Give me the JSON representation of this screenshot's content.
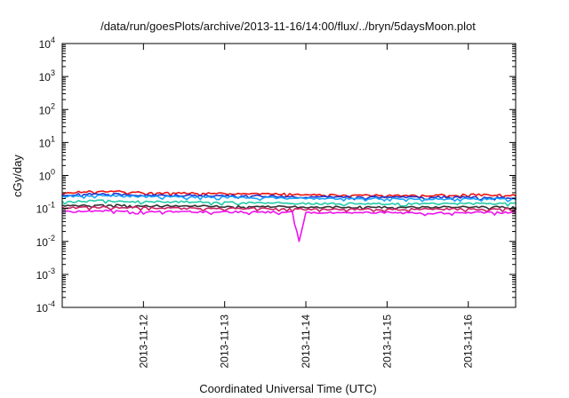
{
  "chart_data": {
    "type": "line",
    "title": "/data/run/goesPlots/archive/2013-11-16/14:00/flux/../bryn/5daysMoon.plot",
    "xlabel": "Coordinated Universal Time (UTC)",
    "ylabel": "cGy/day",
    "yscale": "log",
    "ylim": [
      0.0001,
      10000
    ],
    "xlim": [
      "2013-11-11T00:00",
      "2013-11-16T14:00"
    ],
    "yticks": [
      {
        "base": "10",
        "exp": "-4",
        "value": 0.0001
      },
      {
        "base": "10",
        "exp": "-3",
        "value": 0.001
      },
      {
        "base": "10",
        "exp": "-2",
        "value": 0.01
      },
      {
        "base": "10",
        "exp": "-1",
        "value": 0.1
      },
      {
        "base": "10",
        "exp": "0",
        "value": 1
      },
      {
        "base": "10",
        "exp": "1",
        "value": 10
      },
      {
        "base": "10",
        "exp": "2",
        "value": 100
      },
      {
        "base": "10",
        "exp": "3",
        "value": 1000
      },
      {
        "base": "10",
        "exp": "4",
        "value": 10000
      }
    ],
    "xticks": [
      {
        "label": "2013-11-12",
        "value": "2013-11-12T00:00"
      },
      {
        "label": "2013-11-13",
        "value": "2013-11-13T00:00"
      },
      {
        "label": "2013-11-14",
        "value": "2013-11-14T00:00"
      },
      {
        "label": "2013-11-15",
        "value": "2013-11-15T00:00"
      },
      {
        "label": "2013-11-16",
        "value": "2013-11-16T00:00"
      }
    ],
    "grid": false,
    "legend": "none",
    "series": [
      {
        "color": "#ee1111",
        "x": [
          "2013-11-11T00:00",
          "2013-11-11T12:00",
          "2013-11-12T00:00",
          "2013-11-12T12:00",
          "2013-11-13T00:00",
          "2013-11-13T12:00",
          "2013-11-14T00:00",
          "2013-11-14T12:00",
          "2013-11-15T00:00",
          "2013-11-15T12:00",
          "2013-11-16T00:00",
          "2013-11-16T14:00"
        ],
        "y": [
          0.3,
          0.34,
          0.3,
          0.29,
          0.28,
          0.28,
          0.26,
          0.25,
          0.25,
          0.25,
          0.26,
          0.25
        ]
      },
      {
        "color": "#2233cc",
        "x": [
          "2013-11-11T00:00",
          "2013-11-11T12:00",
          "2013-11-12T00:00",
          "2013-11-12T12:00",
          "2013-11-13T00:00",
          "2013-11-13T12:00",
          "2013-11-14T00:00",
          "2013-11-14T12:00",
          "2013-11-15T00:00",
          "2013-11-15T12:00",
          "2013-11-16T00:00",
          "2013-11-16T14:00"
        ],
        "y": [
          0.26,
          0.28,
          0.25,
          0.25,
          0.24,
          0.24,
          0.22,
          0.22,
          0.22,
          0.22,
          0.22,
          0.21
        ]
      },
      {
        "color": "#1aa3ff",
        "x": [
          "2013-11-11T00:00",
          "2013-11-11T12:00",
          "2013-11-12T00:00",
          "2013-11-12T12:00",
          "2013-11-13T00:00",
          "2013-11-13T12:00",
          "2013-11-14T00:00",
          "2013-11-14T12:00",
          "2013-11-15T00:00",
          "2013-11-15T12:00",
          "2013-11-16T00:00",
          "2013-11-16T14:00"
        ],
        "y": [
          0.23,
          0.25,
          0.23,
          0.22,
          0.22,
          0.21,
          0.2,
          0.2,
          0.2,
          0.19,
          0.2,
          0.19
        ]
      },
      {
        "color": "#22ccaa",
        "x": [
          "2013-11-11T00:00",
          "2013-11-11T12:00",
          "2013-11-12T00:00",
          "2013-11-12T12:00",
          "2013-11-13T00:00",
          "2013-11-13T12:00",
          "2013-11-14T00:00",
          "2013-11-14T12:00",
          "2013-11-15T00:00",
          "2013-11-15T12:00",
          "2013-11-16T00:00",
          "2013-11-16T14:00"
        ],
        "y": [
          0.16,
          0.17,
          0.16,
          0.16,
          0.15,
          0.15,
          0.14,
          0.14,
          0.14,
          0.14,
          0.14,
          0.14
        ]
      },
      {
        "color": "#333333",
        "x": [
          "2013-11-11T00:00",
          "2013-11-11T12:00",
          "2013-11-12T00:00",
          "2013-11-12T12:00",
          "2013-11-13T00:00",
          "2013-11-13T12:00",
          "2013-11-14T00:00",
          "2013-11-14T12:00",
          "2013-11-15T00:00",
          "2013-11-15T12:00",
          "2013-11-16T00:00",
          "2013-11-16T14:00"
        ],
        "y": [
          0.12,
          0.13,
          0.12,
          0.12,
          0.115,
          0.115,
          0.11,
          0.11,
          0.11,
          0.11,
          0.11,
          0.11
        ]
      },
      {
        "color": "#cc2266",
        "x": [
          "2013-11-11T00:00",
          "2013-11-11T12:00",
          "2013-11-12T00:00",
          "2013-11-12T12:00",
          "2013-11-13T00:00",
          "2013-11-13T12:00",
          "2013-11-14T00:00",
          "2013-11-14T12:00",
          "2013-11-15T00:00",
          "2013-11-15T12:00",
          "2013-11-16T00:00",
          "2013-11-16T14:00"
        ],
        "y": [
          0.105,
          0.11,
          0.105,
          0.1,
          0.1,
          0.1,
          0.095,
          0.095,
          0.095,
          0.095,
          0.095,
          0.095
        ]
      },
      {
        "color": "#ee11ee",
        "x": [
          "2013-11-11T00:00",
          "2013-11-11T12:00",
          "2013-11-12T00:00",
          "2013-11-12T12:00",
          "2013-11-13T00:00",
          "2013-11-13T12:00",
          "2013-11-13T20:00",
          "2013-11-13T22:00",
          "2013-11-14T00:00",
          "2013-11-14T12:00",
          "2013-11-15T00:00",
          "2013-11-15T12:00",
          "2013-11-16T00:00",
          "2013-11-16T14:00"
        ],
        "y": [
          0.08,
          0.085,
          0.08,
          0.08,
          0.078,
          0.078,
          0.078,
          0.01,
          0.075,
          0.075,
          0.075,
          0.072,
          0.075,
          0.075
        ]
      }
    ]
  }
}
